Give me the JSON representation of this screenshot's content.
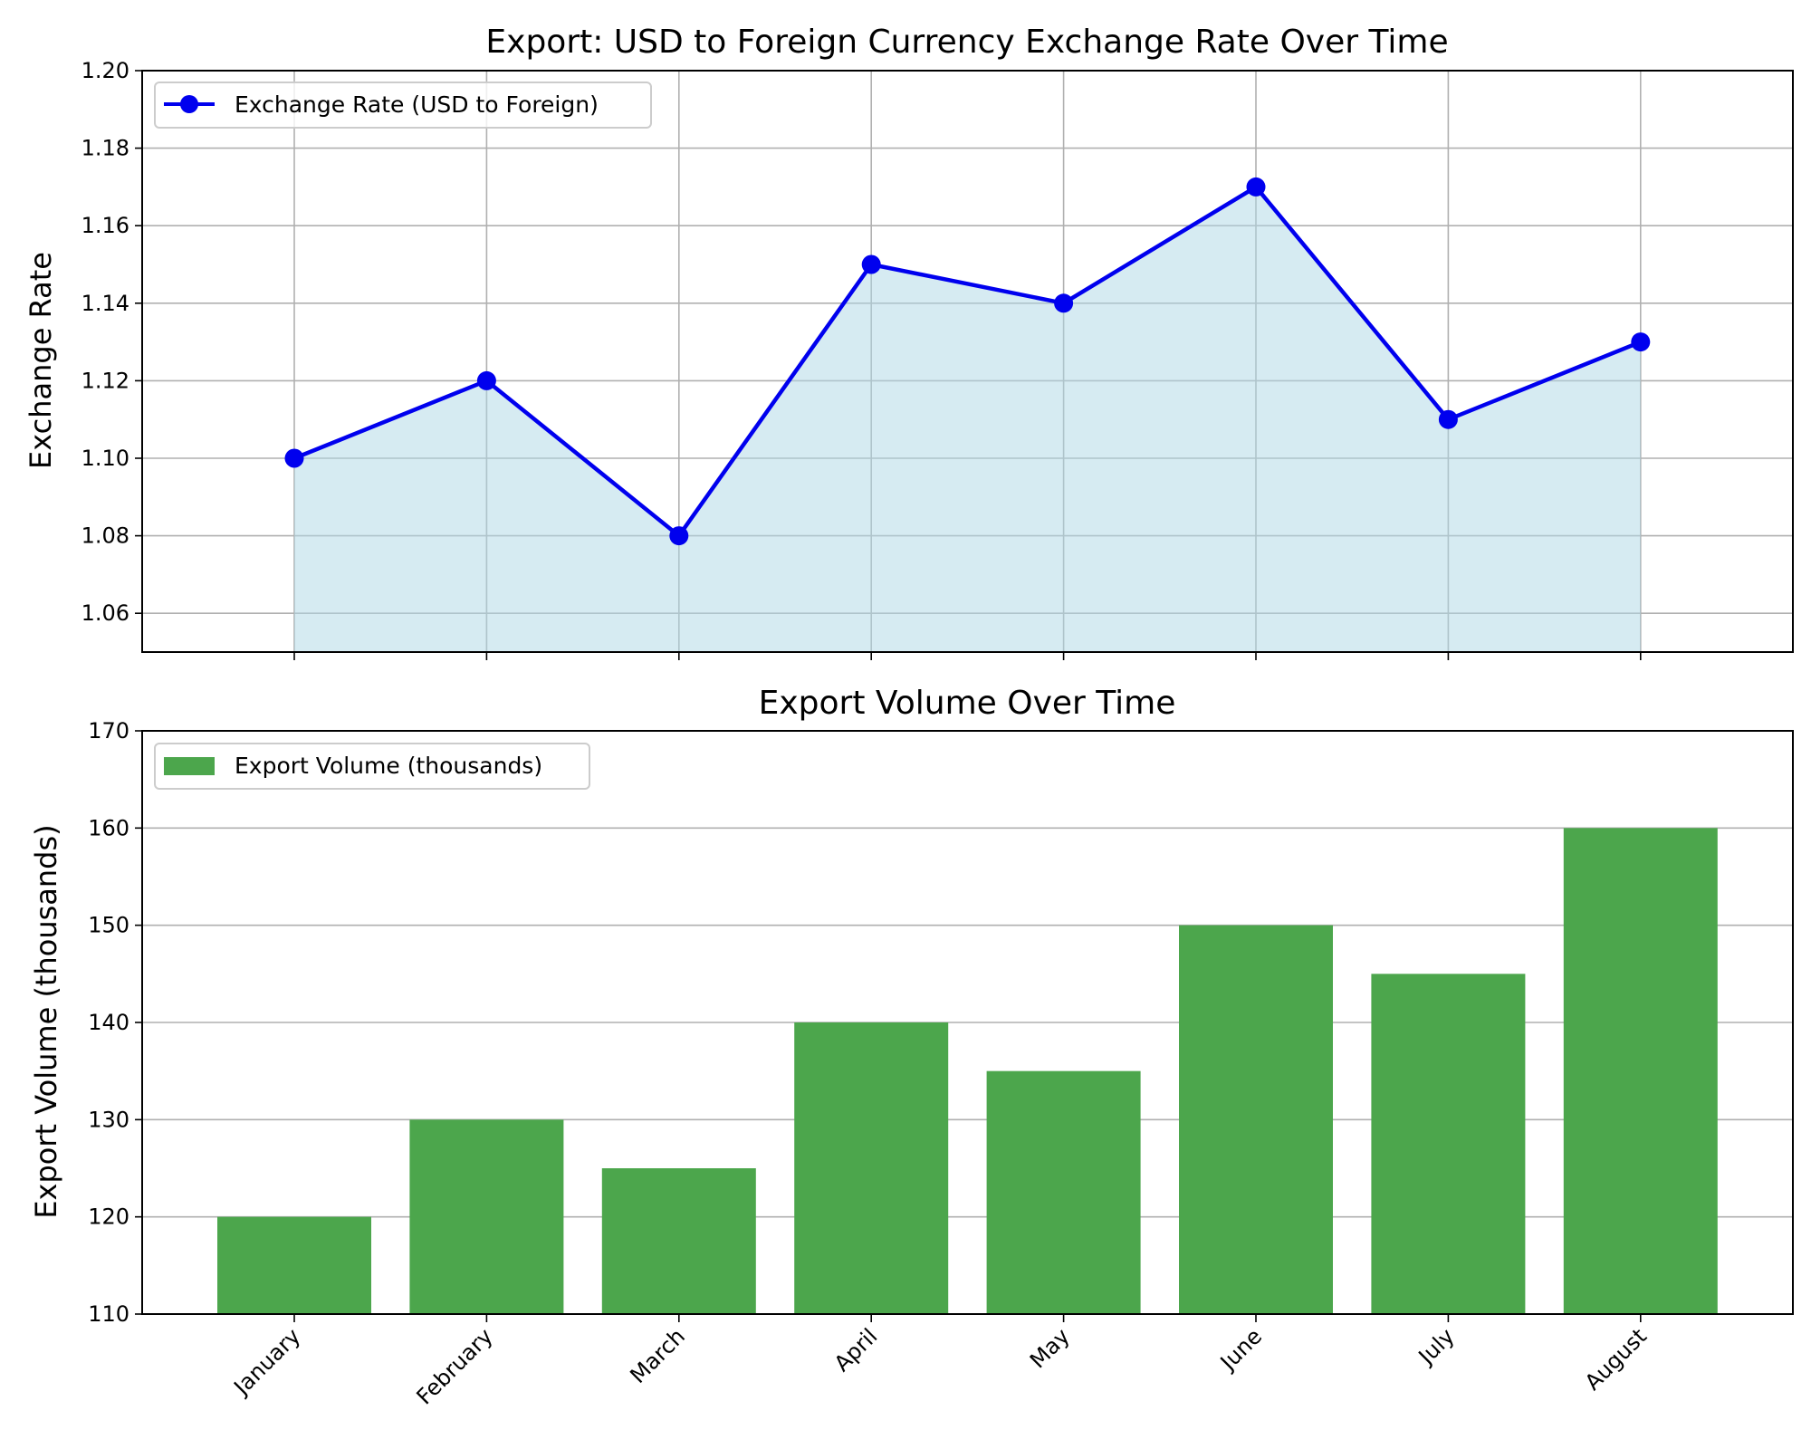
{
  "chart_data": [
    {
      "type": "line",
      "title": "Export: USD to Foreign Currency Exchange Rate Over Time",
      "xlabel": "",
      "ylabel": "Exchange Rate",
      "categories": [
        "January",
        "February",
        "March",
        "April",
        "May",
        "June",
        "July",
        "August"
      ],
      "series": [
        {
          "name": "Exchange Rate (USD to Foreign)",
          "values": [
            1.1,
            1.12,
            1.08,
            1.15,
            1.14,
            1.17,
            1.11,
            1.13
          ],
          "color": "#0000ee",
          "fill_color": "#add8e6"
        }
      ],
      "ylim": [
        1.05,
        1.2
      ],
      "yticks": [
        "1.06",
        "1.08",
        "1.10",
        "1.12",
        "1.14",
        "1.16",
        "1.18",
        "1.20"
      ],
      "grid": "both",
      "legend_position": "top-left",
      "marker": "circle",
      "area_fill": true
    },
    {
      "type": "bar",
      "title": "Export Volume Over Time",
      "xlabel": "",
      "ylabel": "Export Volume (thousands)",
      "categories": [
        "January",
        "February",
        "March",
        "April",
        "May",
        "June",
        "July",
        "August"
      ],
      "series": [
        {
          "name": "Export Volume (thousands)",
          "values": [
            120,
            130,
            125,
            140,
            135,
            150,
            145,
            160
          ],
          "color": "#4ca64c"
        }
      ],
      "ylim": [
        110,
        170
      ],
      "yticks": [
        "110",
        "120",
        "130",
        "140",
        "150",
        "160",
        "170"
      ],
      "grid": "y",
      "legend_position": "top-left",
      "tick_rotation": 45
    }
  ]
}
